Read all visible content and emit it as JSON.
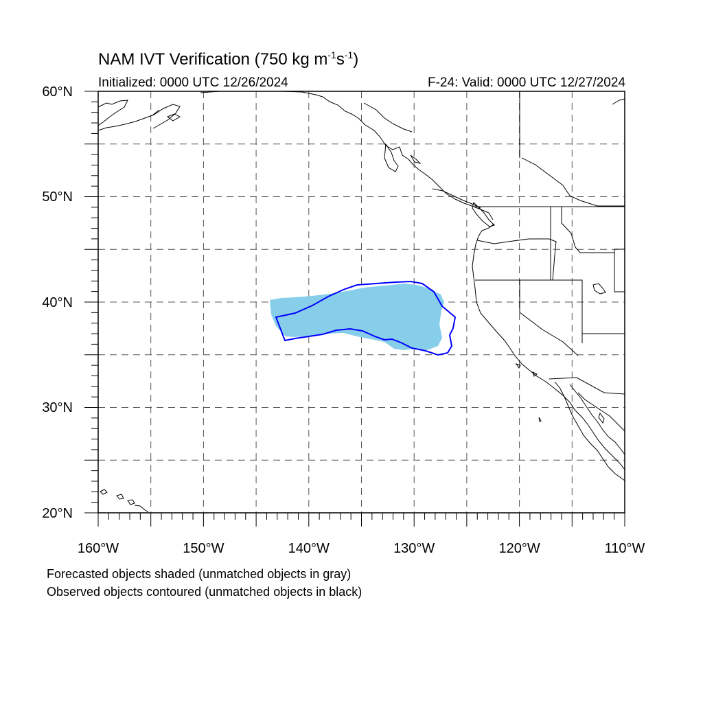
{
  "header": {
    "title_main": "NAM IVT Verification (750 kg m",
    "title_sup1": "-1",
    "title_mid": "s",
    "title_sup2": "-1",
    "title_end": ")",
    "initialized": "Initialized: 0000 UTC 12/26/2024",
    "valid": "F-24: Valid: 0000 UTC 12/27/2024"
  },
  "map": {
    "lon_range": [
      -160,
      -110
    ],
    "lat_range": [
      20,
      60
    ],
    "lon_labels": [
      "160°W",
      "150°W",
      "140°W",
      "130°W",
      "120°W",
      "110°W"
    ],
    "lat_labels": [
      "20°N",
      "30°N",
      "40°N",
      "50°N",
      "60°N"
    ],
    "gridline_style": "dashed",
    "forecast_fill_color": "#87CEEB",
    "observed_contour_color": "#0000FF"
  },
  "footer": {
    "line1": "Forecasted objects shaded (unmatched objects in gray)",
    "line2": "Observed objects contoured (unmatched objects in black)"
  }
}
